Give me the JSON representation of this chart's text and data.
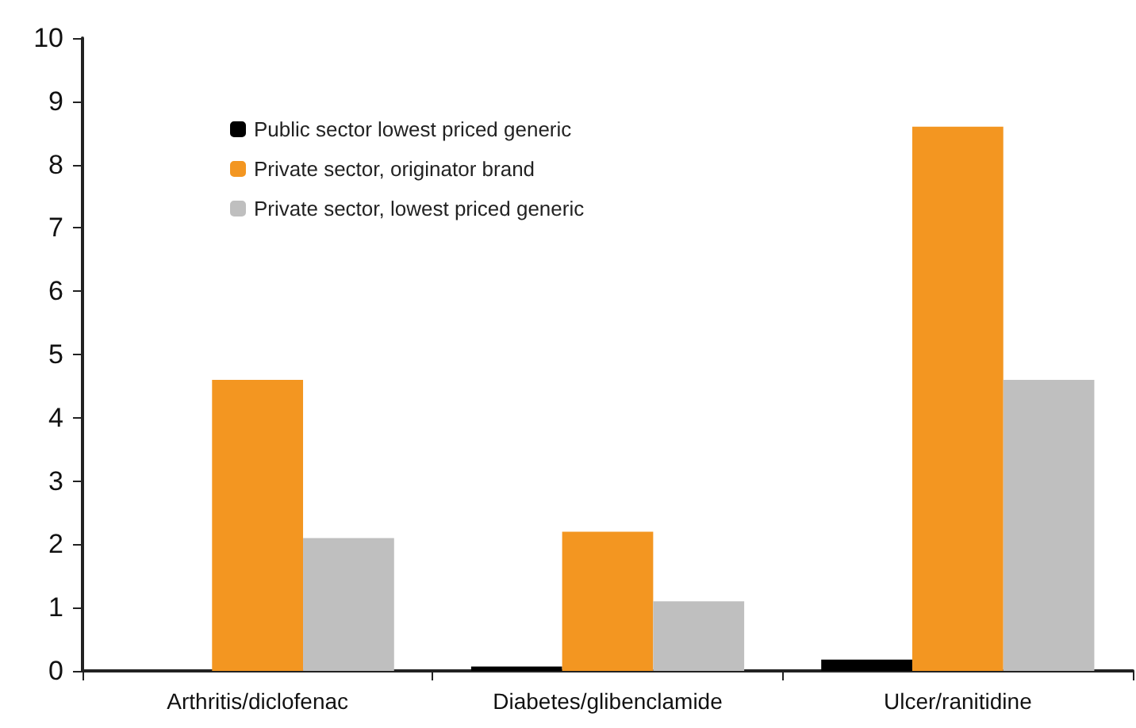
{
  "chart_data": {
    "type": "bar",
    "categories": [
      "Arthritis/diclofenac",
      "Diabetes/glibenclamide",
      "Ulcer/ranitidine"
    ],
    "series": [
      {
        "name": "Public sector lowest priced generic",
        "color": "#000000",
        "values": [
          null,
          0.07,
          0.18
        ]
      },
      {
        "name": "Private sector, originator brand",
        "color": "#f39621",
        "values": [
          4.6,
          2.2,
          8.6
        ]
      },
      {
        "name": "Private sector, lowest priced generic",
        "color": "#bfbfbf",
        "values": [
          2.1,
          1.1,
          4.6
        ]
      }
    ],
    "ylim": [
      0,
      10
    ],
    "yticks": [
      0,
      1,
      2,
      3,
      4,
      5,
      6,
      7,
      8,
      9,
      10
    ],
    "grid": false,
    "legend": "top left"
  }
}
